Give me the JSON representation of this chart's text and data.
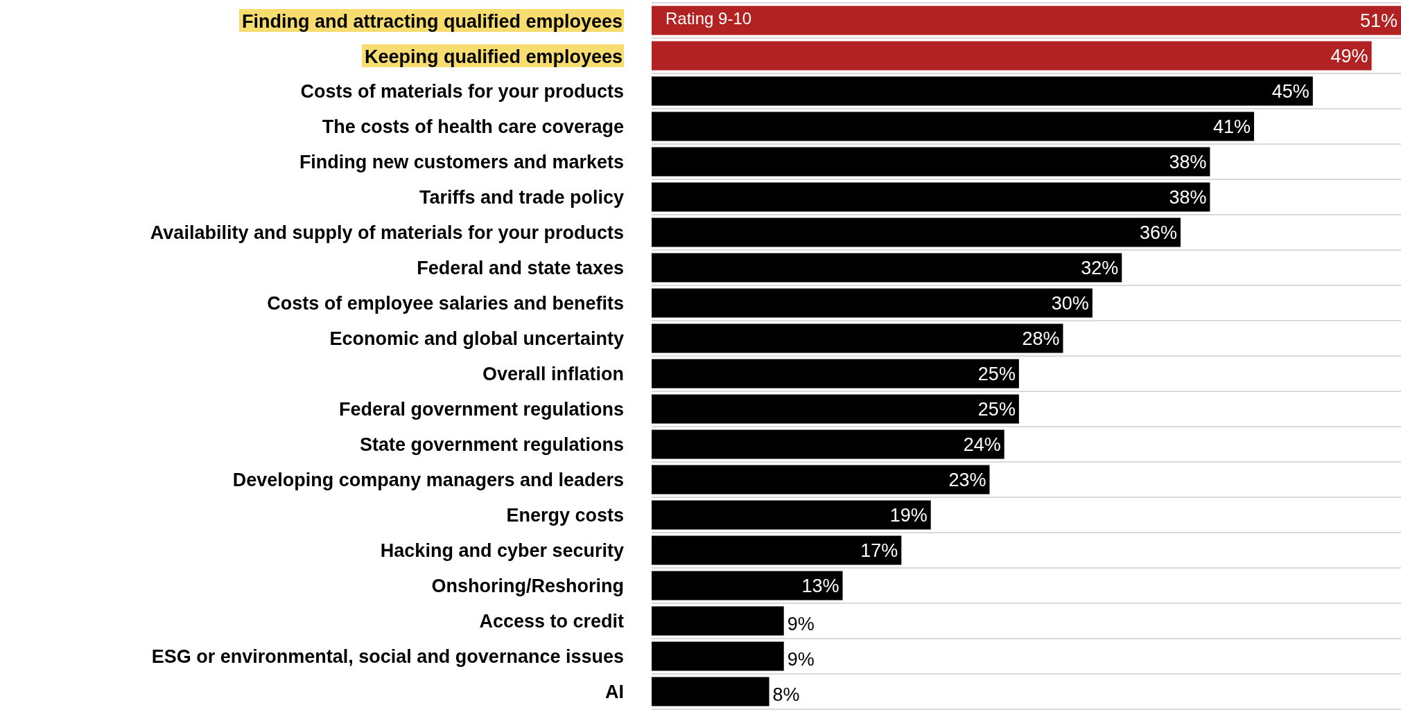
{
  "chart_data": {
    "type": "bar",
    "orientation": "horizontal",
    "grid": "y",
    "value_labels": [
      "51%",
      "49%",
      "45%",
      "41%",
      "38%",
      "38%",
      "36%",
      "32%",
      "30%",
      "28%",
      "25%",
      "25%",
      "24%",
      "23%",
      "19%",
      "17%",
      "13%",
      "9%",
      "9%",
      "8%"
    ],
    "categories": [
      "Finding and attracting qualified employees",
      "Keeping qualified employees",
      "Costs of materials for your products",
      "The costs of health care coverage",
      "Finding new customers and markets",
      "Tariffs and trade policy",
      "Availability and supply of materials for your products",
      "Federal and state taxes",
      "Costs of employee salaries and benefits",
      "Economic and global uncertainty",
      "Overall inflation",
      "Federal government regulations",
      "State government regulations",
      "Developing company managers and leaders",
      "Energy costs",
      "Hacking and cyber security",
      "Onshoring/Reshoring",
      "Access to credit",
      "ESG or environmental, social and governance issues",
      "AI"
    ],
    "values": [
      51,
      49,
      45,
      41,
      38,
      38,
      36,
      32,
      30,
      28,
      25,
      25,
      24,
      23,
      19,
      17,
      13,
      9,
      9,
      8
    ],
    "colors": [
      "#b22222",
      "#b22222",
      "#000000",
      "#000000",
      "#000000",
      "#000000",
      "#000000",
      "#000000",
      "#000000",
      "#000000",
      "#000000",
      "#000000",
      "#000000",
      "#000000",
      "#000000",
      "#000000",
      "#000000",
      "#000000",
      "#000000",
      "#000000"
    ],
    "annotations": [
      "Rating 9-10"
    ]
  }
}
